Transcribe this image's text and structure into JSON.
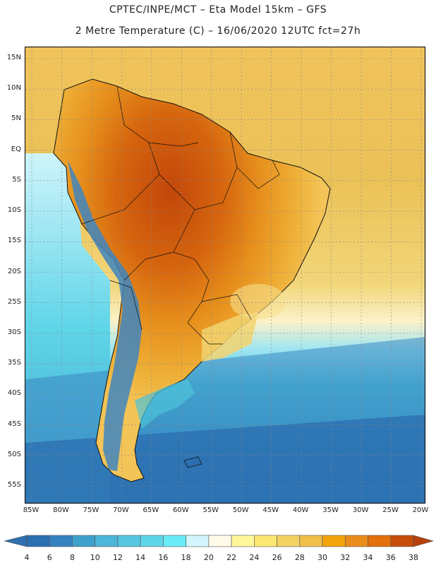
{
  "header": {
    "line1": "CPTEC/INPE/MCT –  Eta Model 15km – GFS",
    "line2": "2 Metre Temperature (C) – 16/06/2020 12UTC fct=27h"
  },
  "axes": {
    "lat_labels": [
      "15N",
      "10N",
      "5N",
      "EQ",
      "5S",
      "10S",
      "15S",
      "20S",
      "25S",
      "30S",
      "35S",
      "40S",
      "45S",
      "50S",
      "55S"
    ],
    "lon_labels": [
      "85W",
      "80W",
      "75W",
      "70W",
      "65W",
      "60W",
      "55W",
      "50W",
      "45W",
      "40W",
      "35W",
      "30W",
      "25W",
      "20W"
    ]
  },
  "colorbar": {
    "labels": [
      "4",
      "6",
      "8",
      "10",
      "12",
      "14",
      "16",
      "18",
      "20",
      "22",
      "24",
      "26",
      "28",
      "30",
      "32",
      "34",
      "36",
      "38"
    ],
    "low_color": "#2f6fad",
    "high_color": "#b8400c",
    "colors": [
      "#2c6fb0",
      "#3582c0",
      "#40a0cc",
      "#4cb5d8",
      "#56c6e0",
      "#5fd5e8",
      "#6aecf6",
      "#d2f6fb",
      "#fffbe8",
      "#fff79a",
      "#fbe772",
      "#f3d264",
      "#eebf49",
      "#f2a40a",
      "#ea8c1c",
      "#e2700c",
      "#c54e0a"
    ]
  },
  "legend_swatches": {
    "ocean_cold": "#3a76b4",
    "ocean_mid": "#4cc3da",
    "ocean_warm": "#ebc257",
    "land_hot": "#cf5c0c"
  }
}
